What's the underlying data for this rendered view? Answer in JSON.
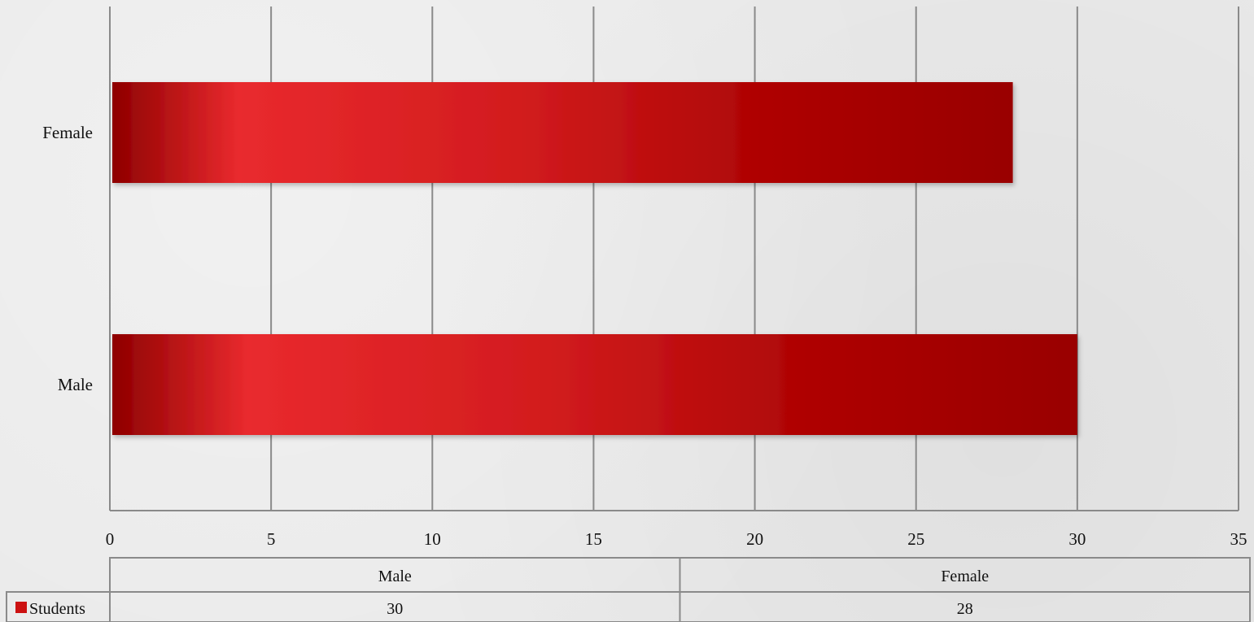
{
  "chart_data": {
    "type": "bar",
    "orientation": "horizontal",
    "categories": [
      "Male",
      "Female"
    ],
    "series": [
      {
        "name": "Students",
        "values": [
          30,
          28
        ]
      }
    ],
    "xlim": [
      0,
      35
    ],
    "x_ticks": [
      0,
      5,
      10,
      15,
      20,
      25,
      30,
      35
    ],
    "grid": "vertical",
    "data_table": true,
    "colors": {
      "bar_dark": "#990000",
      "bar_light": "#ec2b2f",
      "grid": "#8a8a8a",
      "legend_key": "#cc1111"
    }
  }
}
